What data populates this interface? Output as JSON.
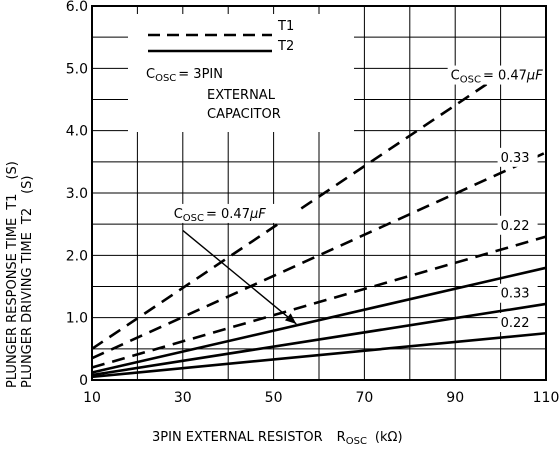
{
  "chart_data": {
    "type": "line",
    "title": "",
    "xlabel": "3PIN EXTERNAL RESISTOR",
    "xlabel_symbol": "R",
    "xlabel_symbol_sub": "OSC",
    "xlabel_unit": "(kΩ)",
    "ylabel_line1": "PLUNGER RESPONSE TIME",
    "ylabel_line1_symbol": "T1",
    "ylabel_line2": "PLUNGER DRIVING TIME",
    "ylabel_line2_symbol": "T2",
    "ylabel_unit": "(S)",
    "xlim": [
      10,
      110
    ],
    "ylim": [
      0,
      6
    ],
    "x_ticks": [
      "10",
      "30",
      "50",
      "70",
      "90",
      "110"
    ],
    "y_ticks": [
      "0",
      "1.0",
      "2.0",
      "3.0",
      "4.0",
      "5.0",
      "6.0"
    ],
    "grid": true,
    "legend": {
      "placement": "top-left",
      "entries": [
        {
          "label": "T1",
          "style": "dashed"
        },
        {
          "label": "T2",
          "style": "solid"
        }
      ],
      "note_prefix": "C",
      "note_sub": "OSC",
      "note_text": "= 3PIN",
      "note_line2": "EXTERNAL",
      "note_line3": "CAPACITOR"
    },
    "series": [
      {
        "name": "T1 0.47μF",
        "style": "dashed",
        "x": [
          10,
          97
        ],
        "y": [
          0.5,
          4.75
        ]
      },
      {
        "name": "T1 0.33",
        "style": "dashed",
        "x": [
          10,
          110
        ],
        "y": [
          0.35,
          3.65
        ]
      },
      {
        "name": "T1 0.22",
        "style": "dashed",
        "x": [
          10,
          110
        ],
        "y": [
          0.2,
          2.3
        ]
      },
      {
        "name": "T2 0.47μF",
        "style": "solid",
        "x": [
          10,
          110
        ],
        "y": [
          0.12,
          1.8
        ]
      },
      {
        "name": "T2 0.33",
        "style": "solid",
        "x": [
          10,
          110
        ],
        "y": [
          0.08,
          1.22
        ]
      },
      {
        "name": "T2 0.22",
        "style": "solid",
        "x": [
          10,
          110
        ],
        "y": [
          0.05,
          0.75
        ]
      }
    ],
    "annotations": [
      {
        "id": "t1-047",
        "prefix": "C",
        "sub": "OSC",
        "text": "= 0.47",
        "unit": "μF",
        "x": 89,
        "y": 4.82
      },
      {
        "id": "t1-033",
        "text": "0.33",
        "x": 100,
        "y": 3.5
      },
      {
        "id": "t1-022",
        "text": "0.22",
        "x": 100,
        "y": 2.41
      },
      {
        "id": "t2-047",
        "prefix": "C",
        "sub": "OSC",
        "text": "= 0.47",
        "unit": "μF",
        "x": 28,
        "y": 2.6
      },
      {
        "id": "t2-033",
        "text": "0.33",
        "x": 100,
        "y": 1.32
      },
      {
        "id": "t2-022",
        "text": "0.22",
        "x": 100,
        "y": 0.85
      }
    ],
    "arrow": {
      "from": [
        30,
        2.4
      ],
      "to": [
        55,
        0.9
      ]
    }
  }
}
